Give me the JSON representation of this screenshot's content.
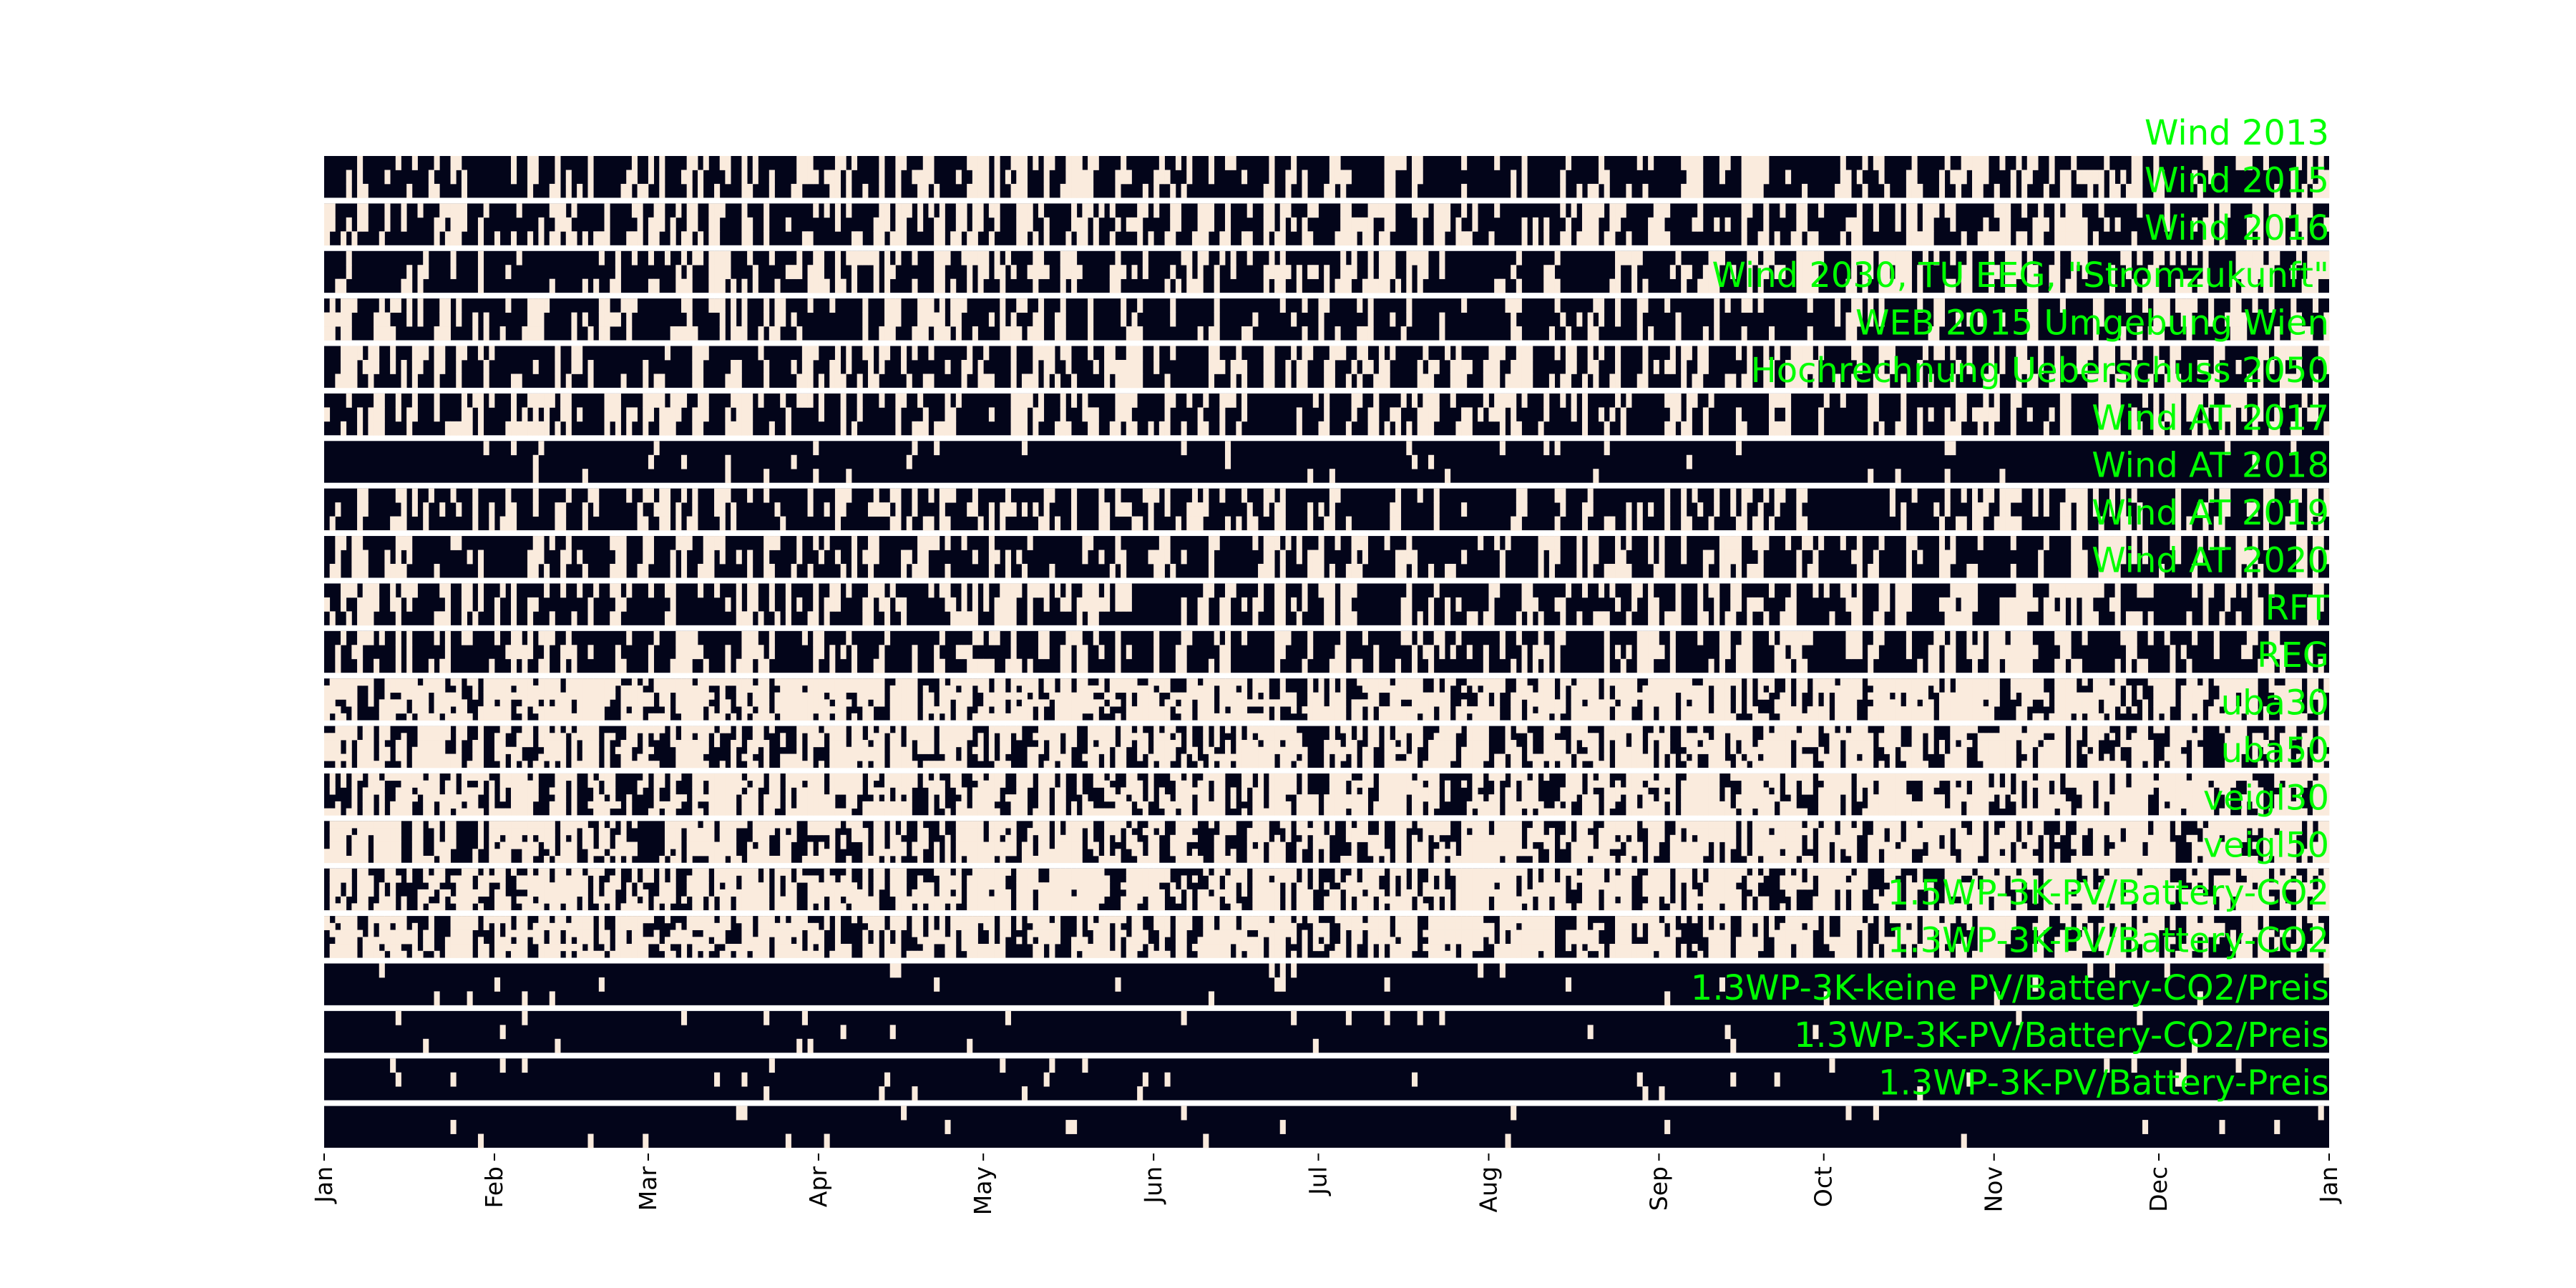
{
  "chart_data": {
    "type": "heatmap",
    "title": "",
    "xlabel": "",
    "ylabel": "",
    "x_axis": {
      "type": "date",
      "range": [
        "2019-01-01",
        "2020-01-01"
      ],
      "tick_labels": [
        "Jan",
        "Feb",
        "Mar",
        "Apr",
        "May",
        "Jun",
        "Jul",
        "Aug",
        "Sep",
        "Oct",
        "Nov",
        "Dec",
        "Jan"
      ],
      "tick_dates": [
        "2019-01-01",
        "2019-02-01",
        "2019-03-01",
        "2019-04-01",
        "2019-05-01",
        "2019-06-01",
        "2019-07-01",
        "2019-08-01",
        "2019-09-01",
        "2019-10-01",
        "2019-11-01",
        "2019-12-01",
        "2020-01-01"
      ]
    },
    "colors": {
      "low": "#03051a",
      "high": "#faebdd",
      "label": "#00ff00",
      "separator": "#ffffff"
    },
    "series": [
      {
        "name": "Wind 2013",
        "high_fraction": 0.28
      },
      {
        "name": "Wind 2015",
        "high_fraction": 0.3
      },
      {
        "name": "Wind 2016",
        "high_fraction": 0.28
      },
      {
        "name": "Wind 2030, TU EEG, \"Stromzukunft\"",
        "high_fraction": 0.27
      },
      {
        "name": "WEB 2015 Umgebung Wien",
        "high_fraction": 0.3
      },
      {
        "name": "Hochrechnung Ueberschuss 2050",
        "high_fraction": 0.3
      },
      {
        "name": "Wind AT 2017",
        "high_fraction": 0.05
      },
      {
        "name": "Wind AT 2018",
        "high_fraction": 0.26
      },
      {
        "name": "Wind AT 2019",
        "high_fraction": 0.28
      },
      {
        "name": "Wind AT 2020",
        "high_fraction": 0.28
      },
      {
        "name": "RFT",
        "high_fraction": 0.28
      },
      {
        "name": "REG",
        "high_fraction": 0.45
      },
      {
        "name": "uba30",
        "high_fraction": 0.42
      },
      {
        "name": "uba50",
        "high_fraction": 0.42
      },
      {
        "name": "veigl30",
        "high_fraction": 0.4
      },
      {
        "name": "veigl50",
        "high_fraction": 0.42
      },
      {
        "name": "1.5WP-3K-PV/Battery-CO2",
        "high_fraction": 0.38
      },
      {
        "name": "1.3WP-3K-PV/Battery-CO2",
        "high_fraction": 0.03
      },
      {
        "name": "1.3WP-3K-keine PV/Battery-CO2/Preis",
        "high_fraction": 0.03
      },
      {
        "name": "1.3WP-3K-PV/Battery-CO2/Preis",
        "high_fraction": 0.03
      },
      {
        "name": "1.3WP-3K-PV/Battery-Preis",
        "high_fraction": 0.03
      }
    ]
  }
}
